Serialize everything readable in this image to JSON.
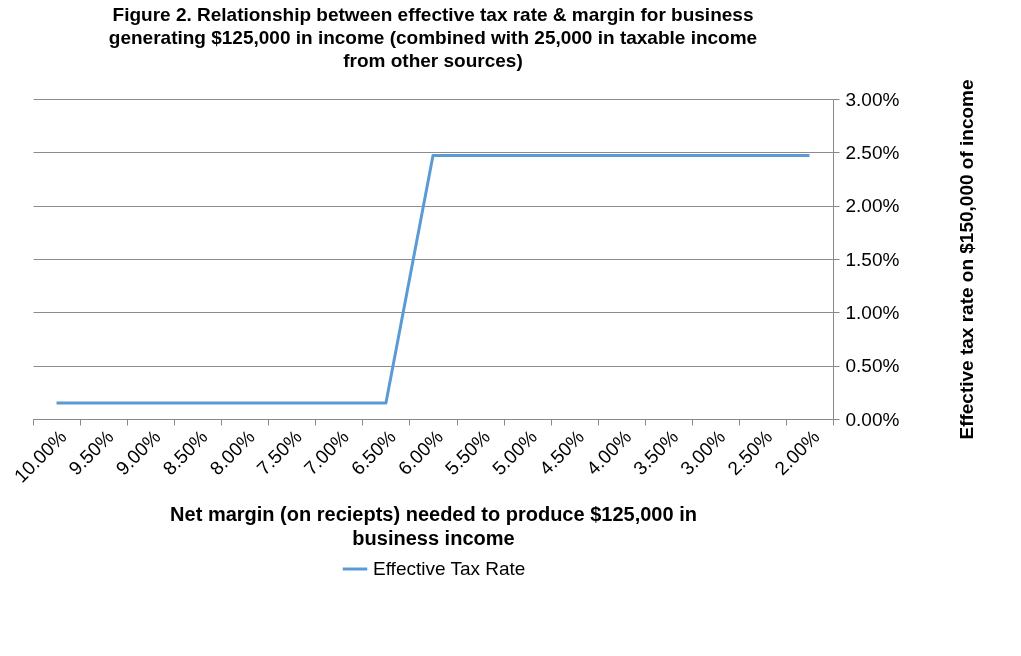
{
  "chart_data": {
    "type": "line",
    "title": "Figure 2. Relationship between effective tax rate & margin for business generating $125,000 in income (combined with 25,000 in taxable income from other sources)",
    "xlabel": "Net margin (on reciepts) needed to produce $125,000 in business income",
    "ylabel": "Effective tax rate on $150,000 of income",
    "categories": [
      "10.00%",
      "9.50%",
      "9.00%",
      "8.50%",
      "8.00%",
      "7.50%",
      "7.00%",
      "6.50%",
      "6.00%",
      "5.50%",
      "5.00%",
      "4.50%",
      "4.00%",
      "3.50%",
      "3.00%",
      "2.50%",
      "2.00%"
    ],
    "series": [
      {
        "name": "Effective Tax Rate",
        "color": "#5b9bd5",
        "values": [
          0.15,
          0.15,
          0.15,
          0.15,
          0.15,
          0.15,
          0.15,
          0.15,
          2.47,
          2.47,
          2.47,
          2.47,
          2.47,
          2.47,
          2.47,
          2.47,
          2.47
        ]
      }
    ],
    "ylim": [
      0,
      3
    ],
    "yticks": [
      {
        "value": 0,
        "label": "0.00%"
      },
      {
        "value": 0.5,
        "label": "0.50%"
      },
      {
        "value": 1,
        "label": "1.00%"
      },
      {
        "value": 1.5,
        "label": "1.50%"
      },
      {
        "value": 2,
        "label": "2.00%"
      },
      {
        "value": 2.5,
        "label": "2.50%"
      },
      {
        "value": 3,
        "label": "3.00%"
      }
    ],
    "grid": "y",
    "legend": "bottom",
    "marker": "none",
    "line_style": "solid"
  }
}
